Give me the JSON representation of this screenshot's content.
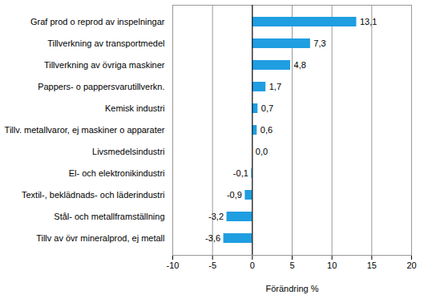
{
  "chart_data": {
    "type": "bar",
    "orientation": "horizontal",
    "x_label": "Förändring %",
    "categories": [
      "Graf prod o reprod av inspelningar",
      "Tillverkning av transportmedel",
      "Tillverkning av övriga maskiner",
      "Pappers- o pappersvarutillverkn.",
      "Kemisk industri",
      "Tillv. metallvaror, ej maskiner o apparater",
      "Livsmedelsindustri",
      "El- och elektronikindustri",
      "Textil-, beklädnads- och läderindustri",
      "Stål- och metallframställning",
      "Tillv av övr mineralprod, ej metall"
    ],
    "values": [
      13.1,
      7.3,
      4.8,
      1.7,
      0.7,
      0.6,
      0.0,
      -0.1,
      -0.9,
      -3.2,
      -3.6
    ],
    "value_labels": [
      "13,1",
      "7,3",
      "4,8",
      "1,7",
      "0,7",
      "0,6",
      "0,0",
      "-0,1",
      "-0,9",
      "-3,2",
      "-3,6"
    ],
    "data_labels": true,
    "color": "#1f9ee1",
    "xlim": [
      -10,
      20
    ],
    "xticks": [
      -10,
      -5,
      0,
      5,
      10,
      15,
      20
    ],
    "grid": true
  }
}
